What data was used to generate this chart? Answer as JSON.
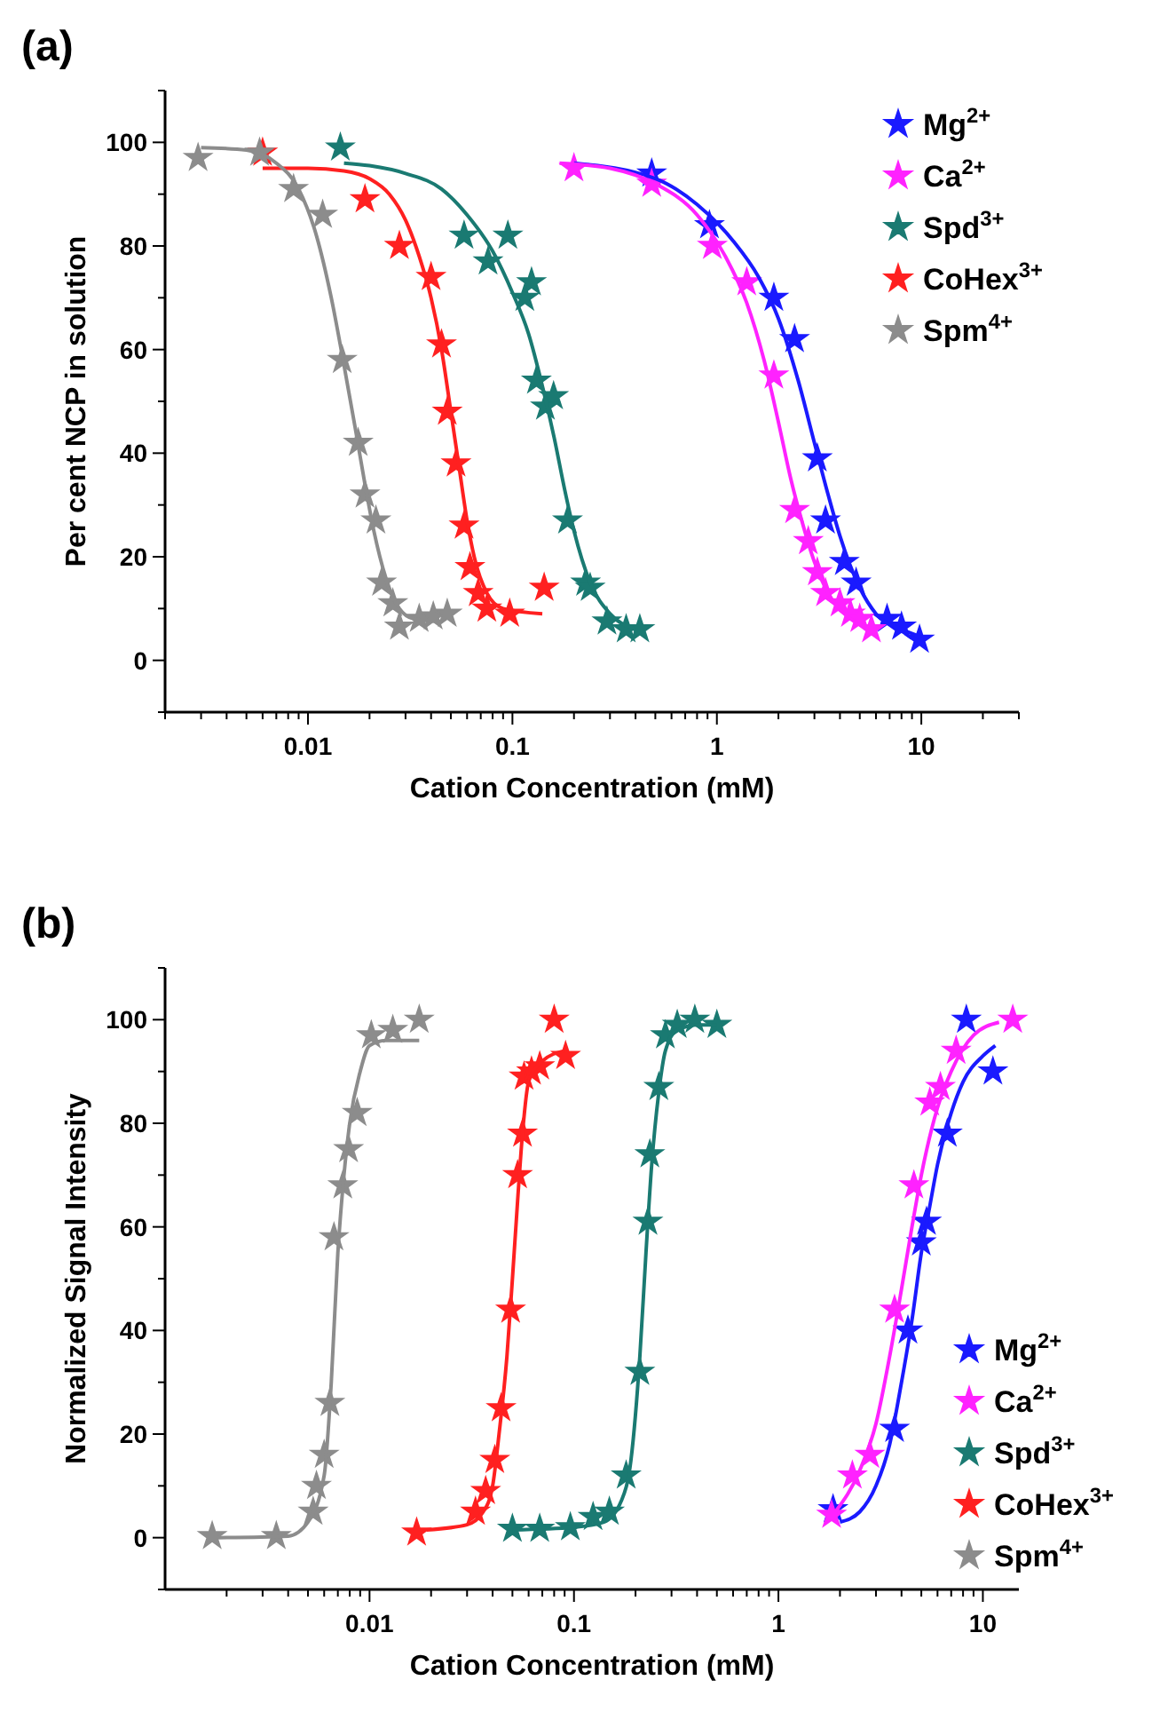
{
  "chart_data": [
    {
      "type": "scatter",
      "title": "(a)",
      "xlabel": "Cation Concentration (mM)",
      "ylabel": "Per cent NCP in solution",
      "log": "x",
      "marker": "star",
      "legend": "top right",
      "grid": false,
      "xlim": [
        0.002,
        30
      ],
      "ylim": [
        -10,
        110
      ],
      "xticks": [
        {
          "value": 0.002,
          "label": null
        },
        {
          "value": 0.003,
          "label": null
        },
        {
          "value": 0.004,
          "label": null
        },
        {
          "value": 0.005,
          "label": null
        },
        {
          "value": 0.006,
          "label": null
        },
        {
          "value": 0.007,
          "label": null
        },
        {
          "value": 0.008,
          "label": null
        },
        {
          "value": 0.009,
          "label": null
        },
        0.01,
        {
          "value": 0.02,
          "label": null
        },
        {
          "value": 0.03,
          "label": null
        },
        {
          "value": 0.04,
          "label": null
        },
        {
          "value": 0.05,
          "label": null
        },
        {
          "value": 0.06,
          "label": null
        },
        {
          "value": 0.07,
          "label": null
        },
        {
          "value": 0.08,
          "label": null
        },
        {
          "value": 0.09,
          "label": null
        },
        0.1,
        {
          "value": 0.2,
          "label": null
        },
        {
          "value": 0.3,
          "label": null
        },
        {
          "value": 0.4,
          "label": null
        },
        {
          "value": 0.5,
          "label": null
        },
        {
          "value": 0.6,
          "label": null
        },
        {
          "value": 0.7,
          "label": null
        },
        {
          "value": 0.8,
          "label": null
        },
        {
          "value": 0.9,
          "label": null
        },
        1,
        {
          "value": 2,
          "label": null
        },
        {
          "value": 3,
          "label": null
        },
        {
          "value": 4,
          "label": null
        },
        {
          "value": 5,
          "label": null
        },
        {
          "value": 6,
          "label": null
        },
        {
          "value": 7,
          "label": null
        },
        {
          "value": 8,
          "label": null
        },
        {
          "value": 9,
          "label": null
        },
        10,
        {
          "value": 20,
          "label": null
        },
        {
          "value": 30,
          "label": null
        }
      ],
      "yticks": [
        {
          "value": -10,
          "label": null
        },
        0,
        {
          "value": 10,
          "label": null
        },
        20,
        {
          "value": 30,
          "label": null
        },
        40,
        {
          "value": 50,
          "label": null
        },
        60,
        {
          "value": 70,
          "label": null
        },
        80,
        {
          "value": 90,
          "label": null
        },
        100,
        {
          "value": 110,
          "label": null
        }
      ],
      "series": [
        {
          "type": "scatter",
          "name": "Mg$^{2+}$",
          "color": "#1a1aff",
          "x": [
            0.48,
            0.92,
            1.9,
            2.4,
            3.1,
            3.4,
            4.2,
            4.8,
            6.8,
            8.0,
            9.8
          ],
          "values": [
            94,
            84,
            70,
            62,
            39,
            27,
            19,
            15,
            8,
            6.5,
            4
          ]
        },
        {
          "name": "Ca$^{2+}$",
          "color": "#ff22ff",
          "x": [
            0.2,
            0.48,
            0.95,
            1.4,
            1.9,
            2.4,
            2.8,
            3.1,
            3.4,
            4.0,
            4.5,
            5.0,
            5.7
          ],
          "values": [
            95,
            92,
            80,
            73,
            55,
            29,
            23,
            17,
            13,
            11,
            9,
            8,
            6
          ]
        },
        {
          "type": "scatter",
          "name": "Spd$^{3+}$",
          "color": "#1a7a72",
          "x": [
            0.0144,
            0.058,
            0.095,
            0.076,
            0.124,
            0.115,
            0.131,
            0.159,
            0.145,
            0.186,
            0.228,
            0.24,
            0.29,
            0.36,
            0.42
          ],
          "values": [
            99,
            82,
            82,
            77,
            73,
            70,
            54,
            51,
            49,
            27,
            15,
            14,
            7.5,
            6,
            6
          ]
        },
        {
          "type": "scatter",
          "name": "CoHex$^{3+}$",
          "color": "#ff2020",
          "x": [
            0.006,
            0.019,
            0.028,
            0.04,
            0.045,
            0.048,
            0.053,
            0.058,
            0.062,
            0.068,
            0.075,
            0.097,
            0.143
          ],
          "values": [
            98,
            89,
            80,
            74,
            61,
            48,
            38,
            26,
            18,
            13,
            10,
            9,
            14
          ]
        },
        {
          "type": "scatter",
          "name": "Spm$^{4+}$",
          "color": "#8c8c8c",
          "x": [
            0.0029,
            0.0058,
            0.0085,
            0.0118,
            0.0147,
            0.0176,
            0.019,
            0.0215,
            0.0229,
            0.026,
            0.028,
            0.035,
            0.041,
            0.048
          ],
          "values": [
            97,
            98,
            91,
            86,
            58,
            42,
            32,
            27,
            15,
            11,
            6.5,
            8,
            8.5,
            9
          ]
        },
        {
          "type": "line",
          "marker": "none",
          "color": "#1a1aff",
          "x": [
            0.2,
            0.5,
            0.8,
            1.2,
            1.6,
            2,
            2.5,
            3,
            3.5,
            4,
            5,
            6,
            8,
            10
          ],
          "values": [
            96,
            93,
            88,
            81,
            74,
            66,
            54,
            42,
            32,
            24,
            14,
            9,
            6,
            4.5
          ]
        },
        {
          "type": "line",
          "marker": "none",
          "color": "#ff22ff",
          "x": [
            0.17,
            0.3,
            0.5,
            0.8,
            1.1,
            1.4,
            1.7,
            2.0,
            2.3,
            2.6,
            3.0,
            3.5,
            4.5,
            6
          ],
          "values": [
            96,
            95,
            92,
            86,
            78,
            69,
            58,
            46,
            35,
            27,
            19,
            13,
            8,
            6
          ]
        },
        {
          "type": "line",
          "marker": "none",
          "color": "#1a7a72",
          "x": [
            0.015,
            0.02,
            0.03,
            0.045,
            0.06,
            0.08,
            0.1,
            0.12,
            0.14,
            0.16,
            0.18,
            0.2,
            0.24,
            0.3,
            0.4
          ],
          "values": [
            96,
            95.5,
            94,
            91,
            86,
            79,
            71,
            63,
            53,
            43,
            33,
            25,
            15,
            9,
            6
          ]
        },
        {
          "type": "line",
          "marker": "none",
          "color": "#ff2020",
          "x": [
            0.006,
            0.01,
            0.015,
            0.02,
            0.025,
            0.03,
            0.035,
            0.04,
            0.045,
            0.05,
            0.055,
            0.06,
            0.065,
            0.075,
            0.09,
            0.14
          ],
          "values": [
            95,
            95,
            94.5,
            93,
            90,
            85,
            78,
            70,
            60,
            48,
            37,
            27,
            20,
            13,
            10,
            9
          ]
        },
        {
          "type": "line",
          "marker": "none",
          "color": "#8c8c8c",
          "x": [
            0.003,
            0.005,
            0.007,
            0.009,
            0.011,
            0.013,
            0.015,
            0.017,
            0.019,
            0.021,
            0.024,
            0.028,
            0.033,
            0.045
          ],
          "values": [
            99,
            98.5,
            96,
            91,
            82,
            70,
            57,
            45,
            34,
            25,
            16,
            10,
            8,
            7.5
          ]
        }
      ]
    },
    {
      "type": "scatter",
      "title": "(b)",
      "xlabel": "Cation Concentration (mM)",
      "ylabel": "Normalized Signal Intensity",
      "log": "x",
      "marker": "star",
      "legend": "bottom right",
      "grid": false,
      "xlim": [
        0.001,
        15
      ],
      "ylim": [
        -10,
        110
      ],
      "xticks": [
        {
          "value": 0.002,
          "label": null
        },
        {
          "value": 0.003,
          "label": null
        },
        {
          "value": 0.004,
          "label": null
        },
        {
          "value": 0.005,
          "label": null
        },
        {
          "value": 0.006,
          "label": null
        },
        {
          "value": 0.007,
          "label": null
        },
        {
          "value": 0.008,
          "label": null
        },
        {
          "value": 0.009,
          "label": null
        },
        0.01,
        {
          "value": 0.02,
          "label": null
        },
        {
          "value": 0.03,
          "label": null
        },
        {
          "value": 0.04,
          "label": null
        },
        {
          "value": 0.05,
          "label": null
        },
        {
          "value": 0.06,
          "label": null
        },
        {
          "value": 0.07,
          "label": null
        },
        {
          "value": 0.08,
          "label": null
        },
        {
          "value": 0.09,
          "label": null
        },
        0.1,
        {
          "value": 0.2,
          "label": null
        },
        {
          "value": 0.3,
          "label": null
        },
        {
          "value": 0.4,
          "label": null
        },
        {
          "value": 0.5,
          "label": null
        },
        {
          "value": 0.6,
          "label": null
        },
        {
          "value": 0.7,
          "label": null
        },
        {
          "value": 0.8,
          "label": null
        },
        {
          "value": 0.9,
          "label": null
        },
        1,
        {
          "value": 2,
          "label": null
        },
        {
          "value": 3,
          "label": null
        },
        {
          "value": 4,
          "label": null
        },
        {
          "value": 5,
          "label": null
        },
        {
          "value": 6,
          "label": null
        },
        {
          "value": 7,
          "label": null
        },
        {
          "value": 8,
          "label": null
        },
        {
          "value": 9,
          "label": null
        },
        10
      ],
      "yticks": [
        {
          "value": -10,
          "label": null
        },
        0,
        {
          "value": 10,
          "label": null
        },
        20,
        {
          "value": 30,
          "label": null
        },
        40,
        {
          "value": 50,
          "label": null
        },
        60,
        {
          "value": 70,
          "label": null
        },
        80,
        {
          "value": 90,
          "label": null
        },
        100,
        {
          "value": 110,
          "label": null
        }
      ],
      "series": [
        {
          "type": "scatter",
          "name": "Mg$^{2+}$",
          "color": "#1a1aff",
          "x": [
            1.85,
            3.7,
            4.3,
            5.0,
            5.3,
            6.7,
            8.3,
            11.2
          ],
          "values": [
            5.5,
            21,
            40,
            57,
            61,
            78,
            100,
            90
          ]
        },
        {
          "name": "Ca$^{2+}$",
          "color": "#ff22ff",
          "x": [
            1.82,
            2.3,
            2.8,
            3.7,
            4.6,
            5.5,
            6.2,
            7.4,
            14
          ],
          "values": [
            4.4,
            12,
            16,
            44,
            68,
            84,
            87,
            94,
            100
          ]
        },
        {
          "type": "scatter",
          "name": "Spd$^{3+}$",
          "color": "#1a7a72",
          "x": [
            0.05,
            0.068,
            0.096,
            0.124,
            0.149,
            0.18,
            0.21,
            0.23,
            0.235,
            0.26,
            0.28,
            0.32,
            0.39,
            0.5
          ],
          "values": [
            1.7,
            1.7,
            2,
            4,
            5,
            12,
            32,
            61,
            74,
            87,
            97,
            99,
            100,
            99
          ]
        },
        {
          "type": "scatter",
          "name": "CoHex$^{3+}$",
          "color": "#ff2020",
          "x": [
            0.017,
            0.033,
            0.037,
            0.041,
            0.044,
            0.049,
            0.053,
            0.056,
            0.057,
            0.062,
            0.068,
            0.08,
            0.091
          ],
          "values": [
            1,
            5,
            9,
            15,
            25,
            44,
            70,
            78,
            89,
            90,
            91,
            100,
            93
          ]
        },
        {
          "type": "scatter",
          "name": "Spm$^{4+}$",
          "color": "#8c8c8c",
          "x": [
            0.0017,
            0.0035,
            0.0053,
            0.0055,
            0.006,
            0.0064,
            0.0067,
            0.0074,
            0.0079,
            0.0087,
            0.0102,
            0.013,
            0.0175
          ],
          "values": [
            0.3,
            0.3,
            5,
            10,
            16,
            26,
            58,
            68,
            75,
            82,
            97,
            98,
            100
          ]
        },
        {
          "type": "line",
          "marker": "none",
          "color": "#1a1aff",
          "x": [
            2,
            2.5,
            3,
            3.5,
            4,
            4.5,
            5,
            5.5,
            6,
            7,
            8,
            10,
            11.5
          ],
          "values": [
            3,
            5,
            10,
            18,
            30,
            42,
            55,
            64,
            72,
            82,
            88,
            93,
            95
          ]
        },
        {
          "type": "line",
          "marker": "none",
          "color": "#ff22ff",
          "x": [
            1.9,
            2.5,
            3,
            3.5,
            4,
            4.5,
            5,
            6,
            7,
            9,
            12
          ],
          "values": [
            5,
            13,
            22,
            35,
            48,
            60,
            70,
            83,
            90,
            97,
            99.5
          ]
        },
        {
          "type": "line",
          "marker": "none",
          "color": "#1a7a72",
          "x": [
            0.05,
            0.1,
            0.14,
            0.17,
            0.19,
            0.21,
            0.225,
            0.24,
            0.26,
            0.28,
            0.32,
            0.4,
            0.5
          ],
          "values": [
            1.5,
            2,
            3,
            7,
            15,
            35,
            55,
            72,
            86,
            94,
            98,
            99,
            99
          ]
        },
        {
          "type": "line",
          "marker": "none",
          "color": "#ff2020",
          "x": [
            0.019,
            0.03,
            0.036,
            0.04,
            0.043,
            0.047,
            0.05,
            0.053,
            0.056,
            0.06,
            0.07,
            0.09
          ],
          "values": [
            1.5,
            2.5,
            5,
            10,
            20,
            35,
            50,
            65,
            78,
            88,
            92,
            94
          ]
        },
        {
          "type": "line",
          "marker": "none",
          "color": "#8c8c8c",
          "x": [
            0.0018,
            0.004,
            0.005,
            0.006,
            0.0065,
            0.007,
            0.0075,
            0.008,
            0.009,
            0.01,
            0.012,
            0.0175
          ],
          "values": [
            0,
            0.3,
            3,
            12,
            30,
            55,
            70,
            80,
            90,
            95,
            96,
            96
          ]
        }
      ]
    }
  ]
}
